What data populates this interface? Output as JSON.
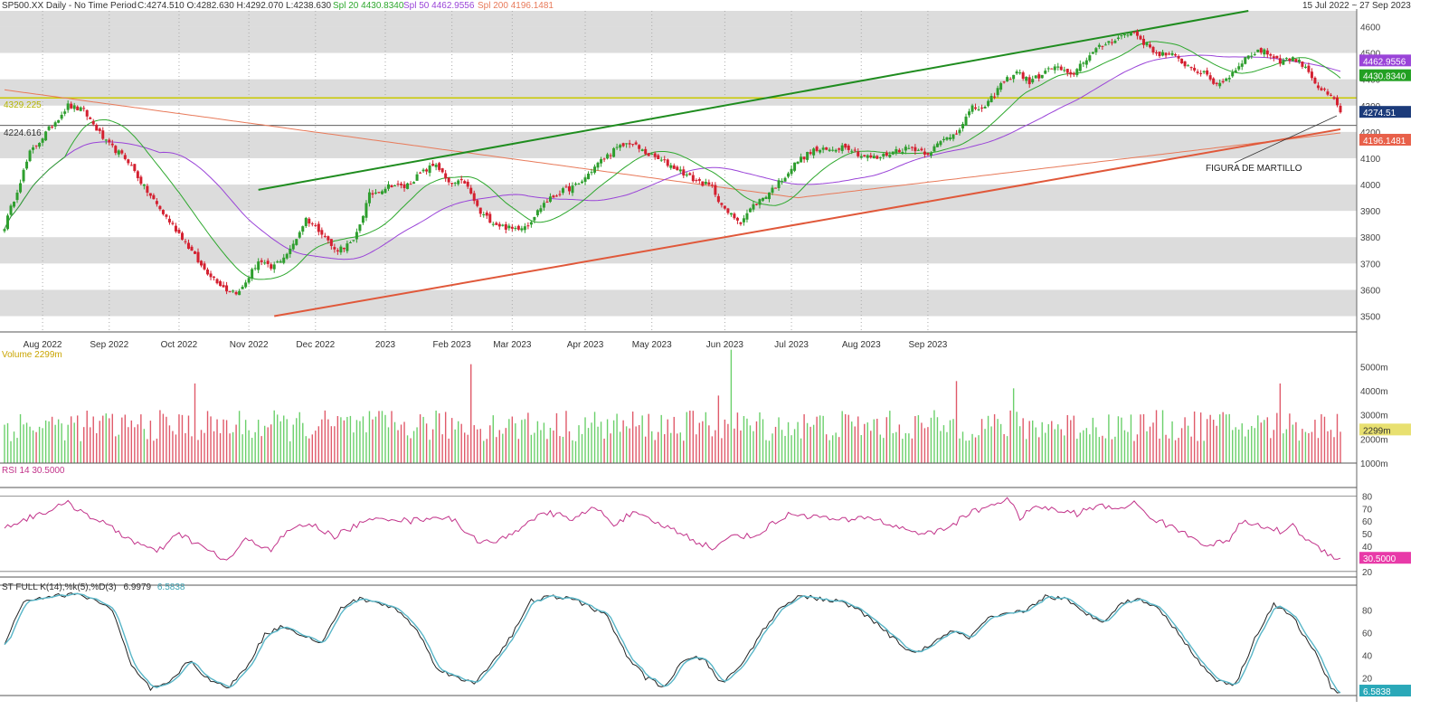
{
  "header": {
    "symbol": "SP500.XX Daily -  No Time Period",
    "ohlc": "C:4274.510 O:4282.630 H:4292.070 L:4238.630",
    "spl20": "Spl 20 4430.8340",
    "spl50": "Spl 50 4462.9556",
    "spl200": "Spl 200 4196.1481",
    "date_range": "15 Jul 2022  ~  27 Sep 2023"
  },
  "colors": {
    "up": "#2e9e2e",
    "down": "#d42030",
    "sma20": "#2ea82e",
    "sma50": "#9a44d8",
    "sma200": "#e87a5a",
    "band": "#dcdcdc",
    "hline": "#c9c900",
    "trend_up": "#1f8c1f",
    "trend_support": "#e0583a",
    "rsi": "#c2338a",
    "stoch_k": "#222222",
    "stoch_d": "#58b6c8",
    "vol_up": "#6bd06b",
    "vol_down": "#e05a6a"
  },
  "price_panel": {
    "level_4329_label": "4329.225",
    "level_4224_label": "4224.616",
    "annotation": "FIGURA DE MARTILLO",
    "tags": {
      "sma50": "4462.9556",
      "sma20": "4430.8340",
      "last": "4274.51",
      "sma200": "4196.1481"
    }
  },
  "volume_panel": {
    "label": "Volume  2299m",
    "tag": "2299m"
  },
  "rsi_panel": {
    "label": "RSI 14  30.5000",
    "tag": "30.5000"
  },
  "stoch_panel": {
    "label": "ST FULL K(14),%k(5),%D(3)",
    "k_value": "6.9979",
    "d_value": "6.5838",
    "tag": "6.5838"
  },
  "chart_data": [
    {
      "type": "candlestick",
      "title": "SP500.XX Daily",
      "ylim": [
        3440,
        4660
      ],
      "y_ticks": [
        3500,
        3600,
        3700,
        3800,
        3900,
        4000,
        4100,
        4200,
        4300,
        4400,
        4500,
        4600
      ],
      "x_month_labels": [
        "Aug 2022",
        "Sep 2022",
        "Oct 2022",
        "Nov 2022",
        "Dec 2022",
        "2023",
        "Feb 2023",
        "Mar 2023",
        "Apr 2023",
        "May 2023",
        "Jun 2023",
        "Jul 2023",
        "Aug 2023",
        "Sep 2023"
      ],
      "close_anchors": [
        [
          0,
          3840
        ],
        [
          8,
          4120
        ],
        [
          14,
          4210
        ],
        [
          20,
          4300
        ],
        [
          25,
          4280
        ],
        [
          32,
          4160
        ],
        [
          39,
          4090
        ],
        [
          44,
          3990
        ],
        [
          50,
          3890
        ],
        [
          56,
          3800
        ],
        [
          62,
          3690
        ],
        [
          70,
          3600
        ],
        [
          74,
          3590
        ],
        [
          80,
          3710
        ],
        [
          84,
          3680
        ],
        [
          90,
          3750
        ],
        [
          95,
          3870
        ],
        [
          100,
          3820
        ],
        [
          104,
          3750
        ],
        [
          110,
          3780
        ],
        [
          115,
          3960
        ],
        [
          122,
          4000
        ],
        [
          126,
          3990
        ],
        [
          131,
          4040
        ],
        [
          136,
          4080
        ],
        [
          140,
          4000
        ],
        [
          145,
          4010
        ],
        [
          150,
          3890
        ],
        [
          155,
          3850
        ],
        [
          160,
          3830
        ],
        [
          165,
          3850
        ],
        [
          170,
          3930
        ],
        [
          175,
          3970
        ],
        [
          181,
          4000
        ],
        [
          187,
          4080
        ],
        [
          192,
          4130
        ],
        [
          197,
          4160
        ],
        [
          202,
          4120
        ],
        [
          207,
          4090
        ],
        [
          212,
          4060
        ],
        [
          217,
          4020
        ],
        [
          223,
          3990
        ],
        [
          227,
          3900
        ],
        [
          232,
          3860
        ],
        [
          236,
          3920
        ],
        [
          240,
          3960
        ],
        [
          245,
          4020
        ],
        [
          250,
          4090
        ],
        [
          255,
          4130
        ],
        [
          260,
          4130
        ],
        [
          265,
          4150
        ],
        [
          270,
          4110
        ],
        [
          275,
          4100
        ],
        [
          281,
          4130
        ],
        [
          286,
          4140
        ],
        [
          291,
          4120
        ],
        [
          296,
          4170
        ],
        [
          300,
          4200
        ],
        [
          305,
          4290
        ],
        [
          309,
          4290
        ],
        [
          314,
          4380
        ],
        [
          319,
          4430
        ],
        [
          323,
          4390
        ],
        [
          327,
          4420
        ],
        [
          331,
          4450
        ],
        [
          336,
          4410
        ],
        [
          340,
          4470
        ],
        [
          346,
          4530
        ],
        [
          351,
          4560
        ],
        [
          356,
          4580
        ],
        [
          359,
          4540
        ],
        [
          363,
          4500
        ],
        [
          368,
          4490
        ],
        [
          373,
          4450
        ],
        [
          378,
          4420
        ],
        [
          382,
          4380
        ],
        [
          386,
          4410
        ],
        [
          390,
          4470
        ],
        [
          395,
          4510
        ],
        [
          398,
          4500
        ],
        [
          402,
          4470
        ],
        [
          406,
          4480
        ],
        [
          410,
          4450
        ],
        [
          414,
          4370
        ],
        [
          419,
          4320
        ],
        [
          421,
          4274.51
        ]
      ],
      "overlays": {
        "sma20": 4430.834,
        "sma50": 4462.9556,
        "sma200": 4196.1481
      },
      "horizontal_levels": [
        4329.225,
        4224.616
      ],
      "trendlines": [
        {
          "name": "resistance",
          "from": [
            80,
            3980
          ],
          "to": [
            392,
            4660
          ]
        },
        {
          "name": "support",
          "from": [
            85,
            3500
          ],
          "to": [
            421,
            4210
          ]
        }
      ],
      "last": 4274.51
    },
    {
      "type": "bar",
      "title": "Volume",
      "unit": "m",
      "ylim": [
        1000,
        5500
      ],
      "y_ticks": [
        "1000m",
        "2000m",
        "3000m",
        "4000m",
        "5000m"
      ],
      "typical_range": [
        1900,
        3200
      ],
      "spikes": [
        [
          60,
          4300
        ],
        [
          147,
          5100
        ],
        [
          225,
          3800
        ],
        [
          229,
          5700
        ],
        [
          300,
          4400
        ],
        [
          318,
          4100
        ],
        [
          402,
          4300
        ]
      ],
      "last": 2299
    },
    {
      "type": "line",
      "title": "RSI 14",
      "ylim": [
        17,
        86
      ],
      "y_ticks": [
        20,
        30,
        40,
        50,
        60,
        70,
        80
      ],
      "anchors": [
        [
          0,
          55
        ],
        [
          10,
          65
        ],
        [
          20,
          74
        ],
        [
          30,
          60
        ],
        [
          40,
          45
        ],
        [
          48,
          35
        ],
        [
          55,
          50
        ],
        [
          62,
          40
        ],
        [
          70,
          28
        ],
        [
          76,
          45
        ],
        [
          84,
          38
        ],
        [
          90,
          53
        ],
        [
          96,
          58
        ],
        [
          104,
          48
        ],
        [
          112,
          58
        ],
        [
          120,
          63
        ],
        [
          128,
          60
        ],
        [
          136,
          64
        ],
        [
          142,
          60
        ],
        [
          148,
          46
        ],
        [
          154,
          42
        ],
        [
          160,
          50
        ],
        [
          166,
          62
        ],
        [
          172,
          66
        ],
        [
          180,
          62
        ],
        [
          186,
          71
        ],
        [
          192,
          58
        ],
        [
          198,
          66
        ],
        [
          206,
          58
        ],
        [
          212,
          52
        ],
        [
          218,
          44
        ],
        [
          224,
          38
        ],
        [
          230,
          50
        ],
        [
          236,
          47
        ],
        [
          242,
          58
        ],
        [
          248,
          66
        ],
        [
          254,
          64
        ],
        [
          260,
          62
        ],
        [
          266,
          60
        ],
        [
          272,
          64
        ],
        [
          278,
          58
        ],
        [
          286,
          52
        ],
        [
          292,
          50
        ],
        [
          298,
          56
        ],
        [
          304,
          66
        ],
        [
          310,
          72
        ],
        [
          316,
          78
        ],
        [
          320,
          63
        ],
        [
          326,
          72
        ],
        [
          332,
          68
        ],
        [
          338,
          66
        ],
        [
          344,
          72
        ],
        [
          350,
          70
        ],
        [
          356,
          74
        ],
        [
          362,
          62
        ],
        [
          368,
          55
        ],
        [
          374,
          48
        ],
        [
          380,
          40
        ],
        [
          386,
          46
        ],
        [
          390,
          59
        ],
        [
          396,
          56
        ],
        [
          402,
          52
        ],
        [
          406,
          56
        ],
        [
          412,
          42
        ],
        [
          418,
          33
        ],
        [
          421,
          30.5
        ]
      ],
      "last": 30.5
    },
    {
      "type": "line",
      "title": "ST FULL K(14),%k(5),%D(3)",
      "ylim": [
        5,
        98
      ],
      "y_ticks": [
        20,
        40,
        60,
        80
      ],
      "anchors": [
        [
          0,
          50
        ],
        [
          6,
          88
        ],
        [
          14,
          92
        ],
        [
          22,
          94
        ],
        [
          28,
          90
        ],
        [
          34,
          80
        ],
        [
          40,
          30
        ],
        [
          46,
          10
        ],
        [
          52,
          15
        ],
        [
          58,
          35
        ],
        [
          64,
          20
        ],
        [
          70,
          10
        ],
        [
          76,
          28
        ],
        [
          82,
          58
        ],
        [
          88,
          66
        ],
        [
          94,
          58
        ],
        [
          100,
          50
        ],
        [
          106,
          82
        ],
        [
          112,
          90
        ],
        [
          118,
          86
        ],
        [
          124,
          80
        ],
        [
          130,
          62
        ],
        [
          136,
          30
        ],
        [
          142,
          20
        ],
        [
          148,
          15
        ],
        [
          154,
          35
        ],
        [
          160,
          58
        ],
        [
          166,
          88
        ],
        [
          172,
          92
        ],
        [
          178,
          90
        ],
        [
          184,
          84
        ],
        [
          190,
          74
        ],
        [
          196,
          40
        ],
        [
          202,
          20
        ],
        [
          208,
          12
        ],
        [
          214,
          35
        ],
        [
          220,
          38
        ],
        [
          226,
          15
        ],
        [
          232,
          30
        ],
        [
          238,
          58
        ],
        [
          244,
          80
        ],
        [
          250,
          93
        ],
        [
          256,
          90
        ],
        [
          262,
          88
        ],
        [
          268,
          82
        ],
        [
          274,
          70
        ],
        [
          280,
          55
        ],
        [
          286,
          42
        ],
        [
          292,
          48
        ],
        [
          298,
          62
        ],
        [
          304,
          55
        ],
        [
          310,
          72
        ],
        [
          316,
          76
        ],
        [
          322,
          80
        ],
        [
          328,
          92
        ],
        [
          334,
          90
        ],
        [
          340,
          78
        ],
        [
          346,
          70
        ],
        [
          352,
          86
        ],
        [
          358,
          90
        ],
        [
          364,
          80
        ],
        [
          370,
          60
        ],
        [
          376,
          35
        ],
        [
          382,
          18
        ],
        [
          388,
          14
        ],
        [
          394,
          55
        ],
        [
          400,
          85
        ],
        [
          406,
          74
        ],
        [
          410,
          55
        ],
        [
          414,
          38
        ],
        [
          418,
          12
        ],
        [
          421,
          6.6
        ]
      ],
      "k_last": 6.9979,
      "d_last": 6.5838
    }
  ]
}
